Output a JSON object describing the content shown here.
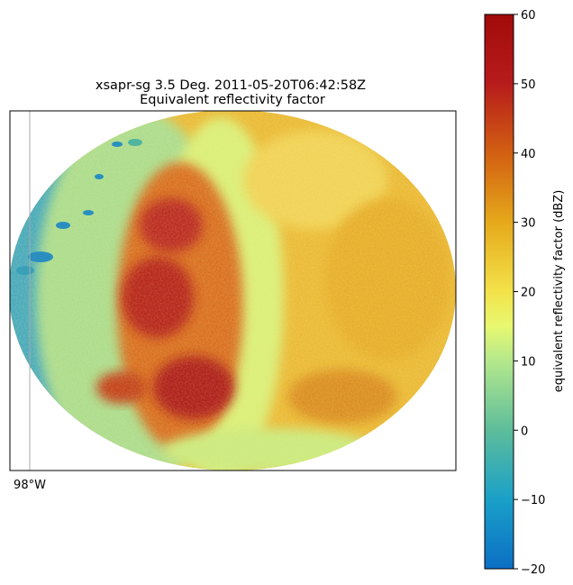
{
  "chart_data": {
    "type": "heatmap",
    "title_line1": "xsapr-sg 3.5 Deg. 2011-05-20T06:42:58Z",
    "title_line2": "Equivalent reflectivity factor",
    "x_tick_labels": [
      "98°W"
    ],
    "colorbar": {
      "label": "equivalent reflectivity factor (dBZ)",
      "min": -20,
      "max": 60,
      "ticks": [
        60,
        50,
        40,
        30,
        20,
        10,
        0,
        -10,
        -20
      ],
      "tick_labels": [
        "60",
        "50",
        "40",
        "30",
        "20",
        "10",
        "0",
        "−10",
        "−20"
      ],
      "colormap_stops": [
        {
          "value": -20,
          "color": "#0b6fc4"
        },
        {
          "value": -10,
          "color": "#1aa0c8"
        },
        {
          "value": 0,
          "color": "#5dbd9b"
        },
        {
          "value": 10,
          "color": "#b4e88c"
        },
        {
          "value": 15,
          "color": "#e8f870"
        },
        {
          "value": 20,
          "color": "#f3e24a"
        },
        {
          "value": 30,
          "color": "#e5a91b"
        },
        {
          "value": 40,
          "color": "#d25f12"
        },
        {
          "value": 50,
          "color": "#b71c1c"
        },
        {
          "value": 60,
          "color": "#a20a0a"
        }
      ]
    },
    "grid_meridian": true,
    "field_regions_dbz": [
      {
        "region": "eastern half",
        "value": 28
      },
      {
        "region": "central band",
        "value": 42
      },
      {
        "region": "southern core",
        "value": 50
      },
      {
        "region": "western fringe",
        "value": -5
      }
    ]
  }
}
